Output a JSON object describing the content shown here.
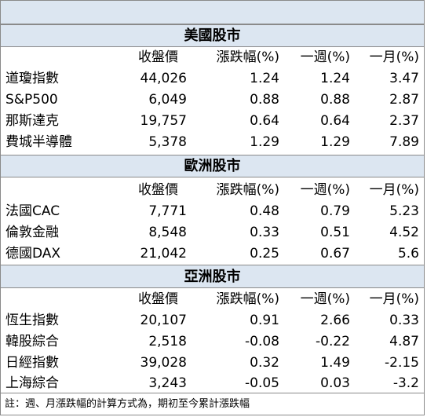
{
  "headers": [
    "收盤價",
    "漲跌幅(%)",
    "一週(%)",
    "一月(%)"
  ],
  "sections": [
    {
      "title": "美國股市",
      "rows": [
        {
          "name": "道瓊指數",
          "close": "44,026",
          "change": "1.24",
          "week": "1.24",
          "month": "3.47"
        },
        {
          "name": "S&P500",
          "close": "6,049",
          "change": "0.88",
          "week": "0.88",
          "month": "2.87"
        },
        {
          "name": "那斯達克",
          "close": "19,757",
          "change": "0.64",
          "week": "0.64",
          "month": "2.37"
        },
        {
          "name": "費城半導體",
          "close": "5,378",
          "change": "1.29",
          "week": "1.29",
          "month": "7.89"
        }
      ]
    },
    {
      "title": "歐洲股市",
      "rows": [
        {
          "name": "法國CAC",
          "close": "7,771",
          "change": "0.48",
          "week": "0.79",
          "month": "5.23"
        },
        {
          "name": "倫敦金融",
          "close": "8,548",
          "change": "0.33",
          "week": "0.51",
          "month": "4.52"
        },
        {
          "name": "德國DAX",
          "close": "21,042",
          "change": "0.25",
          "week": "0.67",
          "month": "5.6"
        }
      ]
    },
    {
      "title": "亞洲股市",
      "rows": [
        {
          "name": "恆生指數",
          "close": "20,107",
          "change": "0.91",
          "week": "2.66",
          "month": "0.33"
        },
        {
          "name": "韓股綜合",
          "close": "2,518",
          "change": "-0.08",
          "week": "-0.22",
          "month": "4.87"
        },
        {
          "name": "日經指數",
          "close": "39,028",
          "change": "0.32",
          "week": "1.49",
          "month": "-2.15"
        },
        {
          "name": "上海綜合",
          "close": "3,243",
          "change": "-0.05",
          "week": "0.03",
          "month": "-3.2"
        }
      ]
    }
  ],
  "note": "註：週、月漲跌幅的計算方式為，期初至今累計漲跌幅",
  "colors": {
    "band": "#dce6f1",
    "border": "#8a8a8a"
  }
}
